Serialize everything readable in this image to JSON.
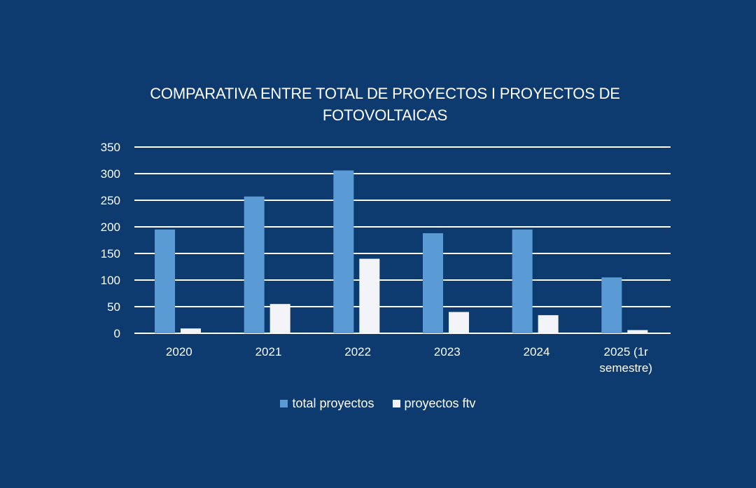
{
  "chart_data": {
    "type": "bar",
    "title": "COMPARATIVA ENTRE TOTAL DE PROYECTOS I PROYECTOS DE FOTOVOLTAICAS",
    "title_lines": [
      "COMPARATIVA ENTRE TOTAL DE PROYECTOS I PROYECTOS DE",
      "FOTOVOLTAICAS"
    ],
    "categories": [
      "2020",
      "2021",
      "2022",
      "2023",
      "2024",
      "2025 (1r semestre)"
    ],
    "category_lines": [
      [
        "2020"
      ],
      [
        "2021"
      ],
      [
        "2022"
      ],
      [
        "2023"
      ],
      [
        "2024"
      ],
      [
        "2025 (1r",
        "semestre)"
      ]
    ],
    "series": [
      {
        "name": "total proyectos",
        "values": [
          195,
          257,
          306,
          188,
          195,
          105
        ],
        "color": "#5b9bd5"
      },
      {
        "name": "proyectos ftv",
        "values": [
          9,
          55,
          140,
          40,
          34,
          6
        ],
        "color": "#f2f4f7"
      }
    ],
    "ylim": [
      0,
      350
    ],
    "yticks": [
      0,
      50,
      100,
      150,
      200,
      250,
      300,
      350
    ],
    "xlabel": "",
    "ylabel": "",
    "grid": true,
    "legend_position": "bottom",
    "background_color": "#0d3b70",
    "gridline_color": "#ffffff"
  }
}
